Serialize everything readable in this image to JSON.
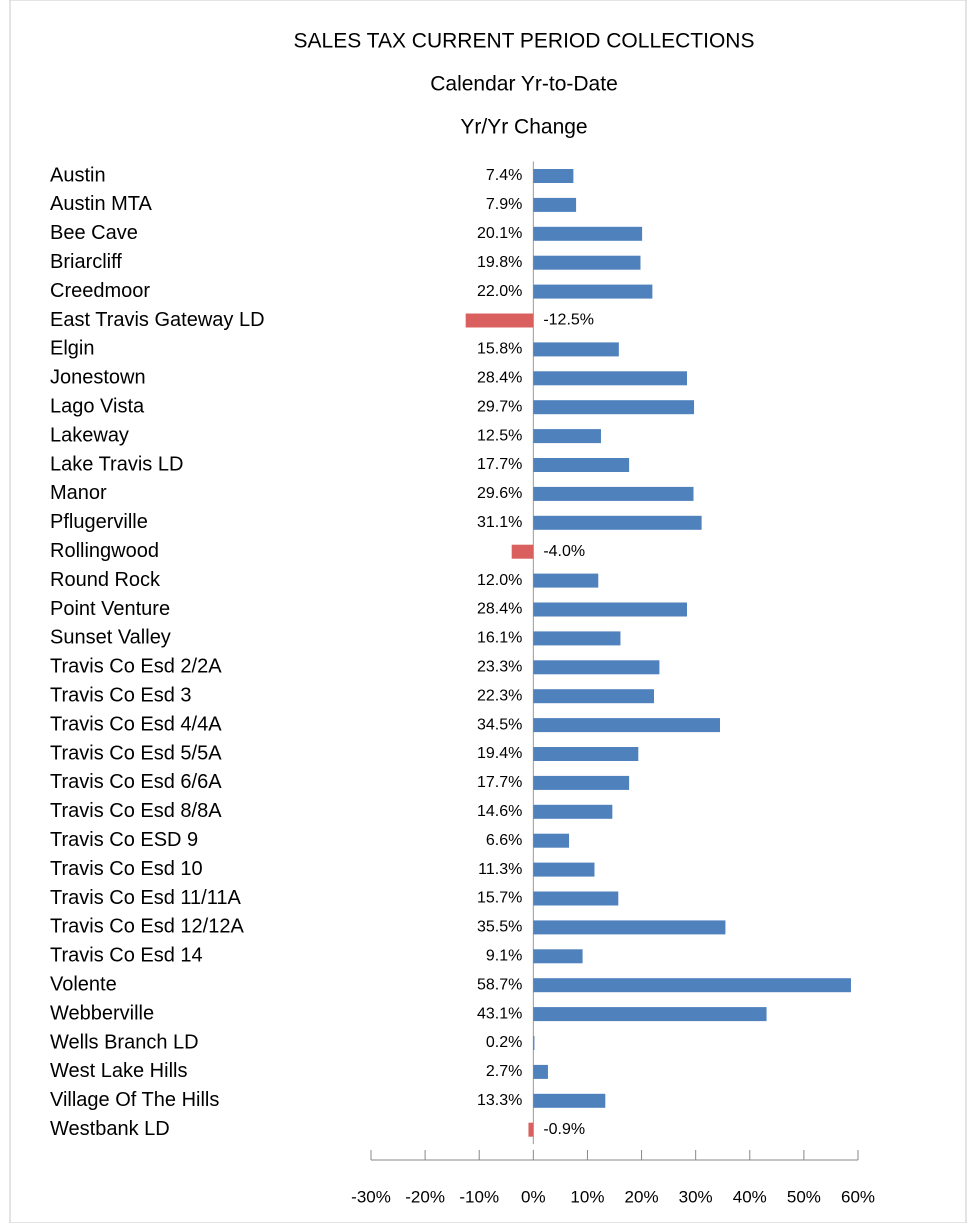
{
  "chart_data": {
    "type": "hbar",
    "title": "SALES TAX CURRENT PERIOD COLLECTIONS",
    "subtitle": "Calendar Yr-to-Date",
    "subtitle2": "Yr/Yr Change",
    "categories": [
      "Austin",
      "Austin MTA",
      "Bee Cave",
      "Briarcliff",
      "Creedmoor",
      "East Travis Gateway LD",
      "Elgin",
      "Jonestown",
      "Lago Vista",
      "Lakeway",
      "Lake Travis LD",
      "Manor",
      "Pflugerville",
      "Rollingwood",
      "Round Rock",
      "Point Venture",
      "Sunset Valley",
      "Travis Co Esd 2/2A",
      "Travis Co Esd 3",
      "Travis Co Esd 4/4A",
      "Travis Co Esd 5/5A",
      "Travis Co Esd 6/6A",
      "Travis Co Esd 8/8A",
      "Travis Co ESD 9",
      "Travis Co Esd 10",
      "Travis Co Esd 11/11A",
      "Travis Co Esd 12/12A",
      "Travis Co Esd 14",
      "Volente",
      "Webberville",
      "Wells Branch LD",
      "West Lake Hills",
      "Village Of The Hills",
      "Westbank LD"
    ],
    "values": [
      7.4,
      7.9,
      20.1,
      19.8,
      22.0,
      -12.5,
      15.8,
      28.4,
      29.7,
      12.5,
      17.7,
      29.6,
      31.1,
      -4.0,
      12.0,
      28.4,
      16.1,
      23.3,
      22.3,
      34.5,
      19.4,
      17.7,
      14.6,
      6.6,
      11.3,
      15.7,
      35.5,
      9.1,
      58.7,
      43.1,
      0.2,
      2.7,
      13.3,
      -0.9
    ],
    "value_labels": [
      "7.4%",
      "7.9%",
      "20.1%",
      "19.8%",
      "22.0%",
      "-12.5%",
      "15.8%",
      "28.4%",
      "29.7%",
      "12.5%",
      "17.7%",
      "29.6%",
      "31.1%",
      "-4.0%",
      "12.0%",
      "28.4%",
      "16.1%",
      "23.3%",
      "22.3%",
      "34.5%",
      "19.4%",
      "17.7%",
      "14.6%",
      "6.6%",
      "11.3%",
      "15.7%",
      "35.5%",
      "9.1%",
      "58.7%",
      "43.1%",
      "0.2%",
      "2.7%",
      "13.3%",
      "-0.9%"
    ],
    "color": "#4f81bd",
    "negative_color": "#d9605e",
    "xlim": [
      -30,
      60
    ],
    "xticks": [
      {
        "value": -30,
        "label": "-30%"
      },
      {
        "value": -20,
        "label": "-20%"
      },
      {
        "value": -10,
        "label": "-10%"
      },
      {
        "value": 0,
        "label": "0%"
      },
      {
        "value": 10,
        "label": "10%"
      },
      {
        "value": 20,
        "label": "20%"
      },
      {
        "value": 30,
        "label": "30%"
      },
      {
        "value": 40,
        "label": "40%"
      },
      {
        "value": 50,
        "label": "50%"
      },
      {
        "value": 60,
        "label": "60%"
      }
    ]
  }
}
